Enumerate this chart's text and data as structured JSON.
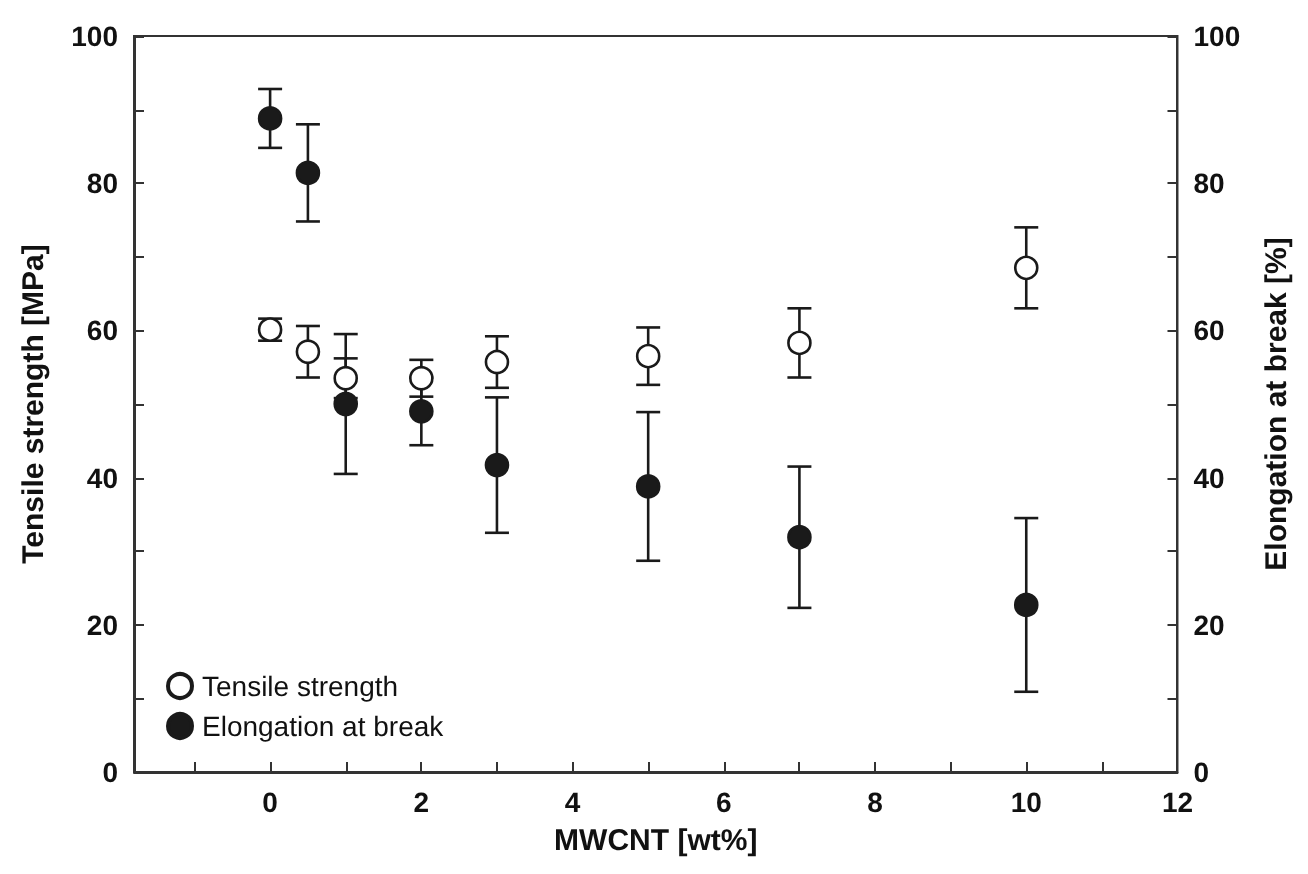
{
  "chart_data": {
    "type": "scatter",
    "xlabel": "MWCNT [wt%]",
    "ylabel": "Tensile strength [MPa]",
    "y2label": "Elongation at break [%]",
    "x": [
      0,
      0.5,
      1,
      2,
      3,
      5,
      7,
      10
    ],
    "series": [
      {
        "name": "Tensile strength",
        "color": "#ffffff",
        "values": [
          60.1,
          57.1,
          53.5,
          53.5,
          55.7,
          56.5,
          58.3,
          68.5
        ],
        "errors": [
          1.5,
          3.5,
          2.7,
          2.5,
          3.5,
          3.9,
          4.7,
          5.5
        ]
      },
      {
        "name": "Elongation at break",
        "color": "#1a1a1a",
        "axis": "y2",
        "values": [
          88.8,
          81.4,
          50.0,
          49.0,
          41.7,
          38.8,
          31.9,
          22.7
        ],
        "errors": [
          4,
          6.6,
          9.5,
          4.6,
          9.2,
          10.1,
          9.6,
          11.8
        ]
      }
    ],
    "xlim": [
      -1.8,
      12
    ],
    "xticks": [
      {
        "value": -1,
        "label": null
      },
      0,
      {
        "value": 1,
        "label": null
      },
      2,
      {
        "value": 3,
        "label": null
      },
      4,
      {
        "value": 5,
        "label": null
      },
      6,
      {
        "value": 7,
        "label": null
      },
      8,
      {
        "value": 9,
        "label": null
      },
      10,
      {
        "value": 11,
        "label": null
      },
      12
    ],
    "ylim": [
      0,
      100
    ],
    "yticks": [
      0,
      {
        "value": 10,
        "label": null
      },
      20,
      {
        "value": 30,
        "label": null
      },
      40,
      {
        "value": 50,
        "label": null
      },
      60,
      {
        "value": 70,
        "label": null
      },
      80,
      {
        "value": 90,
        "label": null
      },
      100
    ],
    "y2lim": [
      0,
      100
    ],
    "y2ticks": [
      0,
      {
        "value": 10,
        "label": null
      },
      20,
      {
        "value": 30,
        "label": null
      },
      40,
      {
        "value": 50,
        "label": null
      },
      60,
      {
        "value": 70,
        "label": null
      },
      80,
      {
        "value": 90,
        "label": null
      },
      100
    ],
    "legend": "bottom left",
    "marker": "circle",
    "grid": false
  }
}
